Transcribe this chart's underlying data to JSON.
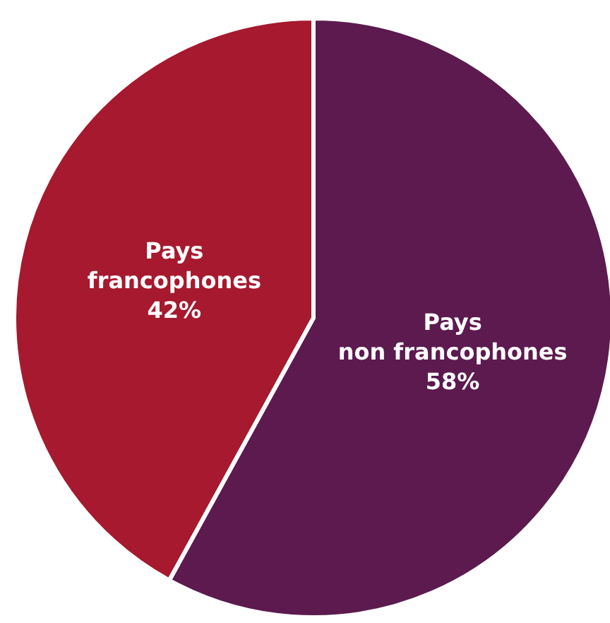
{
  "chart_data": {
    "type": "pie",
    "categories": [
      "Pays non francophones",
      "Pays francophones"
    ],
    "values": [
      58,
      42
    ],
    "colors": [
      "#5c1a4f",
      "#a6192e"
    ],
    "value_labels": [
      "58%",
      "42%"
    ]
  }
}
